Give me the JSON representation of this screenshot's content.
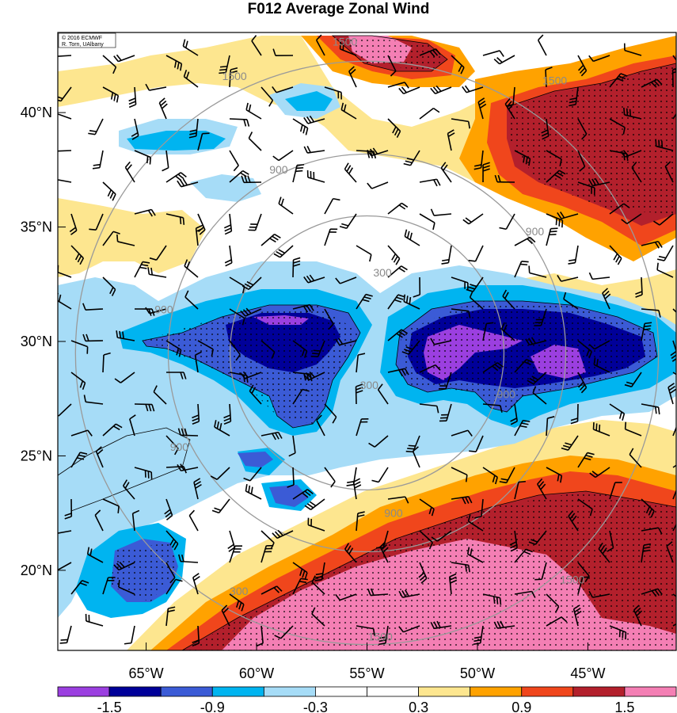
{
  "title": "F012 Average Zonal Wind",
  "credit": {
    "line1": "© 2016 ECMWF",
    "line2": "R. Torn, UAlbany"
  },
  "map": {
    "lon_range": [
      -69,
      -41
    ],
    "lat_range": [
      16.5,
      43.5
    ],
    "lon_ticks": [
      {
        "value": -65,
        "label": "65°W"
      },
      {
        "value": -60,
        "label": "60°W"
      },
      {
        "value": -55,
        "label": "55°W"
      },
      {
        "value": -50,
        "label": "50°W"
      },
      {
        "value": -45,
        "label": "45°W"
      }
    ],
    "lat_ticks": [
      {
        "value": 20,
        "label": "20°N"
      },
      {
        "value": 25,
        "label": "25°N"
      },
      {
        "value": 30,
        "label": "30°N"
      },
      {
        "value": 35,
        "label": "35°N"
      },
      {
        "value": 40,
        "label": "40°N"
      }
    ],
    "range_ring_center": {
      "lon": -55,
      "lat": 29.5
    },
    "range_rings": [
      {
        "label": "300",
        "radius_deg": 6.2,
        "label_positions": [
          {
            "lon": -54.3,
            "lat": 32.9
          },
          {
            "lon": -54.9,
            "lat": 28.0
          },
          {
            "lon": -60.8,
            "lat": 19.0
          }
        ]
      },
      {
        "label": "900",
        "radius_deg": 9.0,
        "label_positions": [
          {
            "lon": -59.0,
            "lat": 37.4
          },
          {
            "lon": -64.2,
            "lat": 31.3
          },
          {
            "lon": -63.5,
            "lat": 25.3
          },
          {
            "lon": -53.8,
            "lat": 22.4
          },
          {
            "lon": -48.7,
            "lat": 27.6
          },
          {
            "lon": -47.4,
            "lat": 34.7
          }
        ]
      },
      {
        "label": "1500",
        "radius_deg": 13.2,
        "label_positions": [
          {
            "lon": -61.0,
            "lat": 41.5
          },
          {
            "lon": -56.0,
            "lat": 43.0
          },
          {
            "lon": -46.5,
            "lat": 41.3
          },
          {
            "lon": -45.7,
            "lat": 19.5
          },
          {
            "lon": -54.4,
            "lat": 17.0
          }
        ]
      }
    ]
  },
  "colorbar": {
    "colors": [
      "#9b3fe0",
      "#000099",
      "#3b5bd6",
      "#00b4f0",
      "#a6dcf7",
      "#ffffff",
      "#ffffff",
      "#fde68f",
      "#ffa200",
      "#f0461c",
      "#b3202c",
      "#f47fb4"
    ],
    "labels": [
      "-1.5",
      "-0.9",
      "-0.3",
      "0.3",
      "0.9",
      "1.5"
    ]
  }
}
